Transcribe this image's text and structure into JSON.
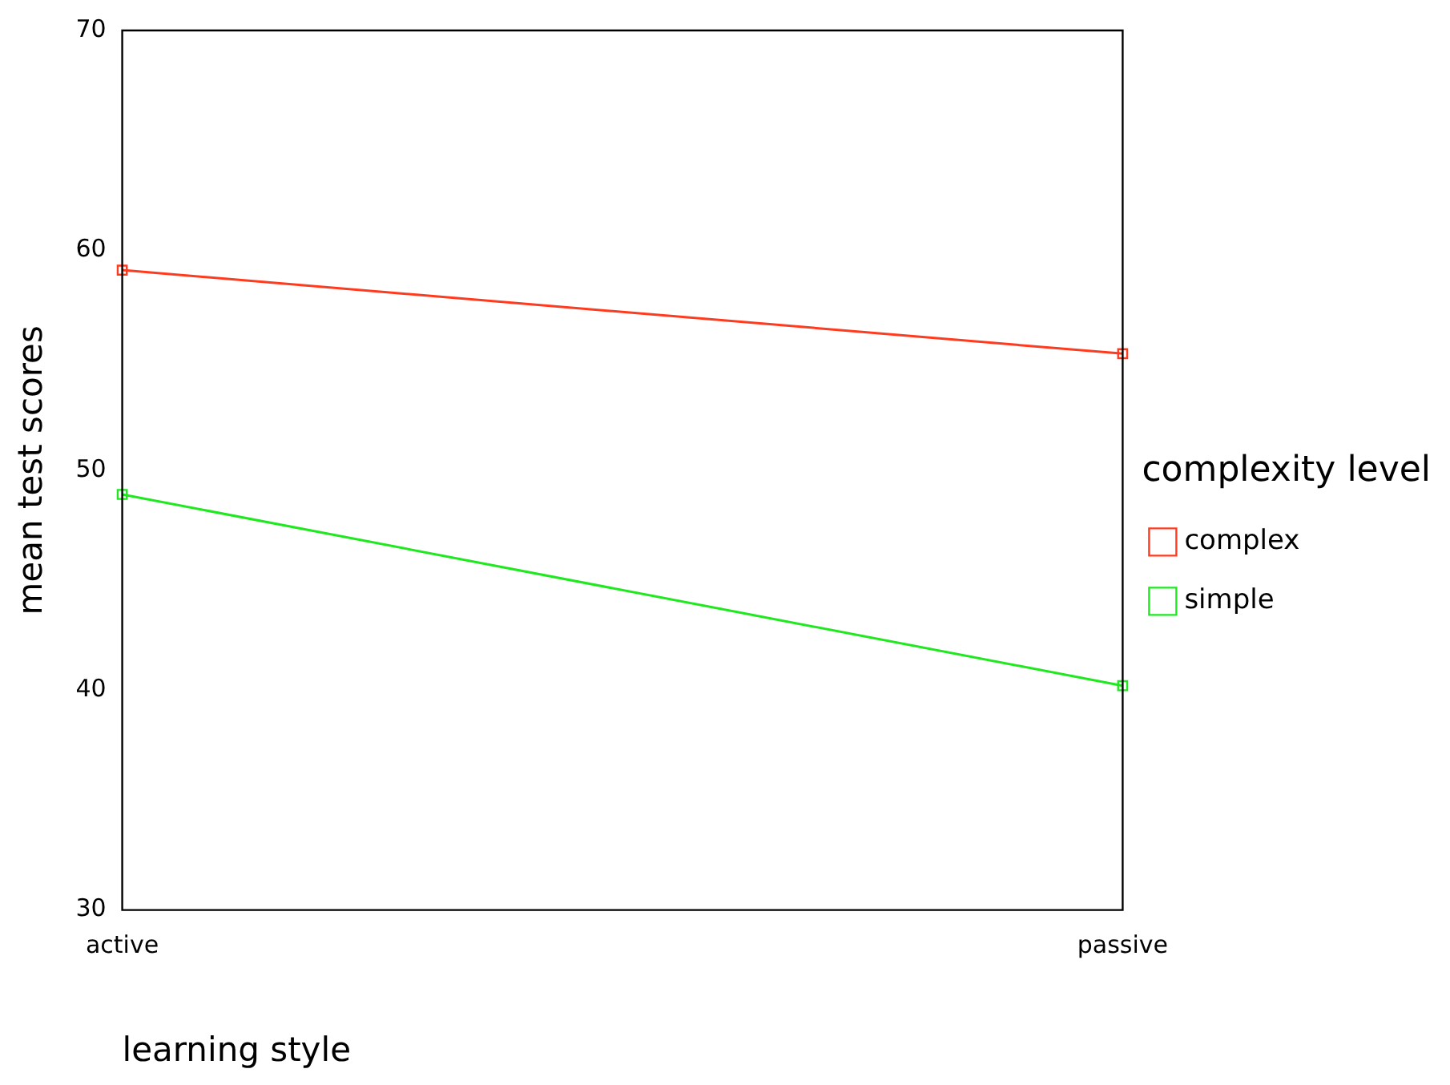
{
  "chart_data": {
    "type": "line",
    "xlabel": "learning style",
    "ylabel": "mean test scores",
    "legend_title": "complexity level",
    "categories": [
      "active",
      "passive"
    ],
    "series": [
      {
        "name": "complex",
        "color": "#ff3b1f",
        "values": [
          59.1,
          55.3
        ]
      },
      {
        "name": "simple",
        "color": "#1ee81e",
        "values": [
          48.9,
          40.2
        ]
      }
    ],
    "ylim": [
      30,
      70
    ],
    "yticks": [
      30,
      40,
      50,
      60,
      70
    ],
    "grid": false,
    "legend": "right",
    "marker": "square",
    "line_style": "solid"
  }
}
